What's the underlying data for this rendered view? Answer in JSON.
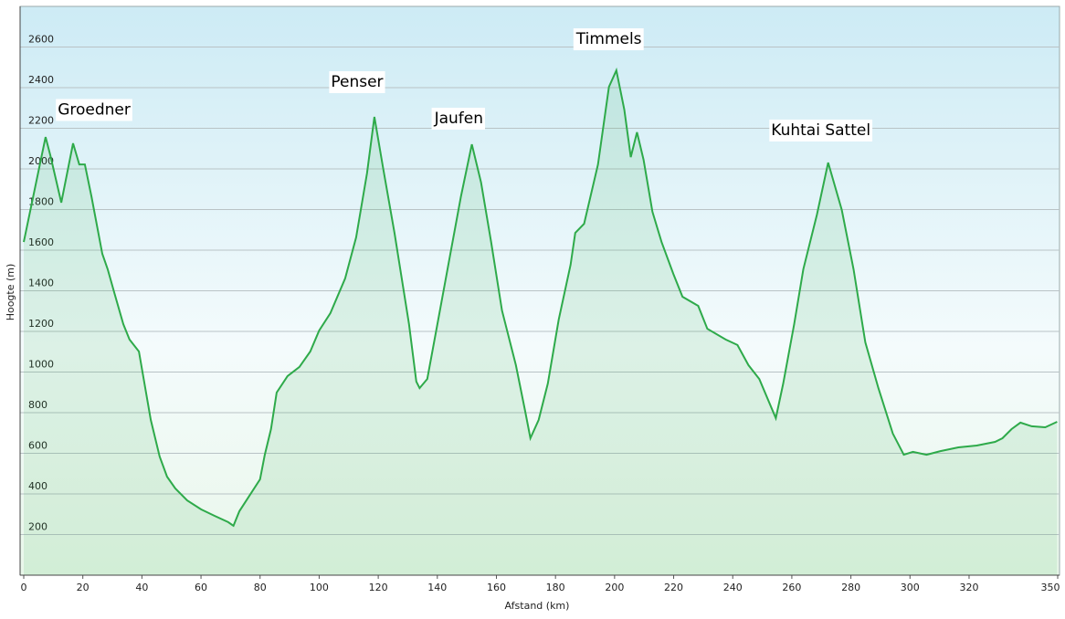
{
  "chart_data": {
    "type": "area",
    "xlabel": "Afstand  (km)",
    "ylabel": "Hoogte (m)",
    "color": "#2eaa4a",
    "x": [
      0,
      7.4,
      9,
      12.7,
      16.7,
      18.8,
      20.7,
      22.9,
      26.6,
      28.4,
      30.6,
      33.7,
      35.8,
      39,
      43,
      46,
      48.5,
      51.3,
      55.3,
      60,
      64.6,
      69.2,
      71,
      73,
      80,
      81.6,
      83.7,
      85.6,
      89.3,
      93.3,
      97,
      100,
      103.8,
      108.8,
      112.5,
      116.2,
      118.7,
      121.7,
      125.5,
      130.4,
      132.9,
      134,
      136.6,
      140.3,
      144.3,
      148,
      151.7,
      154.8,
      158.2,
      161.9,
      166.6,
      169.7,
      171.5,
      174.3,
      177.4,
      181.1,
      185.1,
      186.7,
      189.7,
      194.4,
      198.1,
      200.6,
      203.3,
      205.5,
      207.6,
      209.8,
      212.8,
      215.9,
      219.9,
      223,
      228.3,
      231.4,
      237.6,
      241.6,
      245.3,
      249,
      254.6,
      257.1,
      260.8,
      263.9,
      268.5,
      272.3,
      276.9,
      280.9,
      284.9,
      289.3,
      294.2,
      297.9,
      301,
      305.6,
      310.3,
      316.4,
      322.6,
      328.8,
      331.3,
      334.4,
      337.4,
      341.2,
      345.8,
      349.8
    ],
    "values": [
      1640,
      2157,
      2067,
      1834,
      2126,
      2022,
      2022,
      1865,
      1582,
      1506,
      1393,
      1236,
      1160,
      1101,
      764,
      584,
      485,
      427,
      368,
      324,
      292,
      261,
      243,
      315,
      472,
      593,
      719,
      899,
      980,
      1025,
      1101,
      1204,
      1290,
      1461,
      1663,
      1978,
      2256,
      2000,
      1685,
      1236,
      953,
      921,
      966,
      1258,
      1573,
      1865,
      2121,
      1933,
      1640,
      1303,
      1034,
      809,
      674,
      764,
      944,
      1258,
      1528,
      1685,
      1730,
      2022,
      2404,
      2485,
      2292,
      2058,
      2180,
      2045,
      1789,
      1640,
      1483,
      1371,
      1326,
      1213,
      1160,
      1133,
      1034,
      966,
      773,
      944,
      1236,
      1506,
      1775,
      2031,
      1798,
      1506,
      1146,
      921,
      697,
      593,
      607,
      593,
      611,
      629,
      638,
      656,
      674,
      719,
      751,
      733,
      728,
      755
    ],
    "xlim": [
      0,
      350
    ],
    "ylim": [
      0,
      2800
    ],
    "xticks": [
      0,
      20,
      40,
      60,
      80,
      100,
      120,
      140,
      160,
      180,
      200,
      220,
      240,
      260,
      280,
      300,
      320,
      350
    ],
    "yticks": [
      200,
      400,
      600,
      800,
      1000,
      1200,
      1400,
      1600,
      1800,
      2000,
      2200,
      2400,
      2600
    ],
    "grid": true,
    "annotations": [
      {
        "text": "Groedner",
        "x": 11.5,
        "y": 2290
      },
      {
        "text": "Penser",
        "x": 104,
        "y": 2427
      },
      {
        "text": "Jaufen",
        "x": 139,
        "y": 2247
      },
      {
        "text": "Timmels",
        "x": 187,
        "y": 2638
      },
      {
        "text": "Kuhtai Sattel",
        "x": 253,
        "y": 2189
      }
    ]
  }
}
